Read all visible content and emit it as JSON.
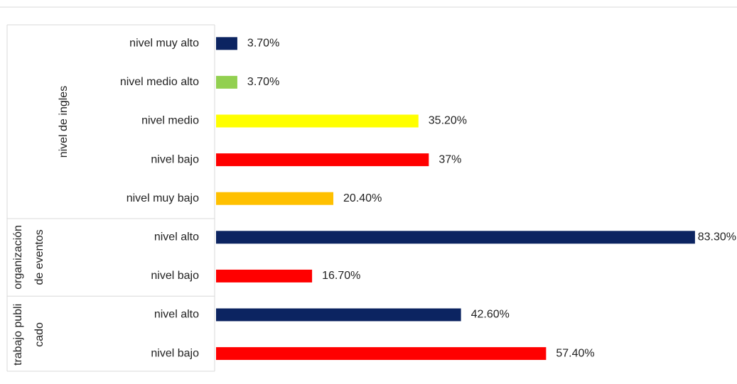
{
  "chart_data": {
    "type": "bar",
    "orientation": "horizontal",
    "groups": [
      {
        "name": "nivel de ingles",
        "size": 5
      },
      {
        "name": "organización de eventos",
        "size": 2
      },
      {
        "name": "trabajo publicado",
        "size": 2
      }
    ],
    "categories": [
      "nivel muy alto",
      "nivel medio alto",
      "nivel medio",
      "nivel bajo",
      "nivel muy bajo",
      "nivel alto",
      "nivel bajo",
      "nivel alto",
      "nivel bajo"
    ],
    "values": [
      3.7,
      3.7,
      35.2,
      37,
      20.4,
      83.3,
      16.7,
      42.6,
      57.4
    ],
    "value_labels": [
      "3.70%",
      "3.70%",
      "35.20%",
      "37%",
      "20.40%",
      "83.30%",
      "16.70%",
      "42.60%",
      "57.40%"
    ],
    "colors": [
      "#0c2461",
      "#92d050",
      "#ffff00",
      "#ff0000",
      "#ffc000",
      "#0c2461",
      "#ff0000",
      "#0c2461",
      "#ff0000"
    ]
  }
}
